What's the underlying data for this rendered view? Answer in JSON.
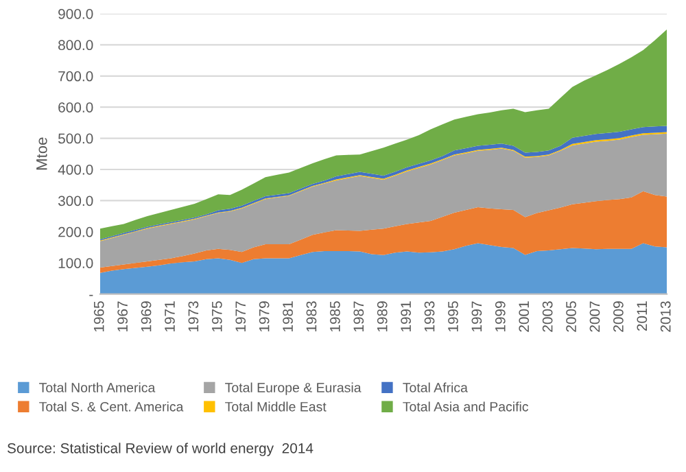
{
  "chart_data": {
    "type": "area",
    "stacked": true,
    "ylabel": "Mtoe",
    "x": [
      1965,
      1966,
      1967,
      1968,
      1969,
      1970,
      1971,
      1972,
      1973,
      1974,
      1975,
      1976,
      1977,
      1978,
      1979,
      1980,
      1981,
      1982,
      1983,
      1984,
      1985,
      1986,
      1987,
      1988,
      1989,
      1990,
      1991,
      1992,
      1993,
      1994,
      1995,
      1996,
      1997,
      1998,
      1999,
      2000,
      2001,
      2002,
      2003,
      2004,
      2005,
      2006,
      2007,
      2008,
      2009,
      2010,
      2011,
      2012,
      2013
    ],
    "xlim": [
      1965,
      2013
    ],
    "xticks": [
      1965,
      1967,
      1969,
      1971,
      1973,
      1975,
      1977,
      1979,
      1981,
      1983,
      1985,
      1987,
      1989,
      1991,
      1993,
      1995,
      1997,
      1999,
      2001,
      2003,
      2005,
      2007,
      2009,
      2011,
      2013
    ],
    "ylim": [
      0,
      900
    ],
    "yticks": [
      {
        "value": 0,
        "label": "-"
      },
      {
        "value": 100,
        "label": "100.0"
      },
      {
        "value": 200,
        "label": "200.0"
      },
      {
        "value": 300,
        "label": "300.0"
      },
      {
        "value": 400,
        "label": "400.0"
      },
      {
        "value": 500,
        "label": "500.0"
      },
      {
        "value": 600,
        "label": "600.0"
      },
      {
        "value": 700,
        "label": "700.0"
      },
      {
        "value": 800,
        "label": "800.0"
      },
      {
        "value": 900,
        "label": "900.0"
      }
    ],
    "grid": "y",
    "legend": "bottom",
    "series": [
      {
        "name": "Total North America",
        "color": "#5b9bd5",
        "values": [
          68,
          75,
          80,
          84,
          88,
          92,
          98,
          102,
          105,
          112,
          115,
          110,
          100,
          112,
          115,
          115,
          115,
          125,
          135,
          138,
          138,
          138,
          137,
          128,
          125,
          133,
          137,
          133,
          134,
          137,
          144,
          155,
          163,
          157,
          151,
          148,
          126,
          138,
          140,
          144,
          148,
          146,
          144,
          145,
          145,
          145,
          163,
          153,
          150
        ]
      },
      {
        "name": "Total S. & Cent. America",
        "color": "#ed7d31",
        "values": [
          17,
          15,
          15,
          16,
          17,
          18,
          17,
          20,
          25,
          28,
          30,
          32,
          35,
          38,
          45,
          45,
          45,
          50,
          55,
          60,
          67,
          66,
          66,
          79,
          85,
          85,
          88,
          97,
          101,
          111,
          117,
          115,
          116,
          118,
          121,
          122,
          121,
          122,
          129,
          134,
          140,
          147,
          154,
          157,
          160,
          165,
          167,
          165,
          163
        ]
      },
      {
        "name": "Total Europe & Eurasia",
        "color": "#a5a5a5",
        "values": [
          85,
          90,
          95,
          100,
          105,
          108,
          110,
          110,
          110,
          110,
          115,
          123,
          140,
          140,
          145,
          150,
          155,
          155,
          155,
          157,
          160,
          168,
          176,
          166,
          157,
          162,
          169,
          175,
          181,
          182,
          184,
          182,
          181,
          188,
          195,
          190,
          191,
          180,
          176,
          182,
          189,
          190,
          191,
          190,
          191,
          194,
          181,
          195,
          202
        ]
      },
      {
        "name": "Total Middle East",
        "color": "#ffc000",
        "values": [
          2,
          2,
          2,
          2,
          2,
          2,
          2,
          2,
          2,
          2,
          2,
          2,
          2,
          2,
          2,
          2,
          2,
          2,
          2,
          2,
          3,
          3,
          3,
          3,
          3,
          3,
          3,
          3,
          3,
          3,
          3,
          3,
          3,
          3,
          3,
          3,
          3,
          3,
          3,
          3,
          5,
          5,
          5,
          5,
          5,
          5,
          5,
          5,
          5
        ]
      },
      {
        "name": "Total Africa",
        "color": "#4472c4",
        "values": [
          4,
          4,
          4,
          4,
          4,
          4,
          4,
          4,
          4,
          4,
          7,
          7,
          7,
          7,
          7,
          7,
          7,
          7,
          7,
          7,
          10,
          10,
          10,
          10,
          10,
          10,
          10,
          10,
          10,
          10,
          13,
          13,
          13,
          13,
          13,
          13,
          13,
          13,
          13,
          13,
          20,
          20,
          20,
          20,
          20,
          20,
          20,
          20,
          20
        ]
      },
      {
        "name": "Total Asia and Pacific",
        "color": "#70ad47",
        "values": [
          34,
          32,
          29,
          32,
          34,
          36,
          39,
          42,
          44,
          49,
          51,
          44,
          51,
          56,
          61,
          64,
          66,
          66,
          66,
          69,
          67,
          62,
          56,
          73,
          90,
          90,
          89,
          92,
          100,
          102,
          99,
          101,
          101,
          104,
          107,
          119,
          130,
          134,
          134,
          154,
          163,
          177,
          188,
          203,
          218,
          231,
          247,
          277,
          309
        ]
      }
    ],
    "annotations": [
      "Source: Statistical Review of world energy  2014"
    ]
  }
}
